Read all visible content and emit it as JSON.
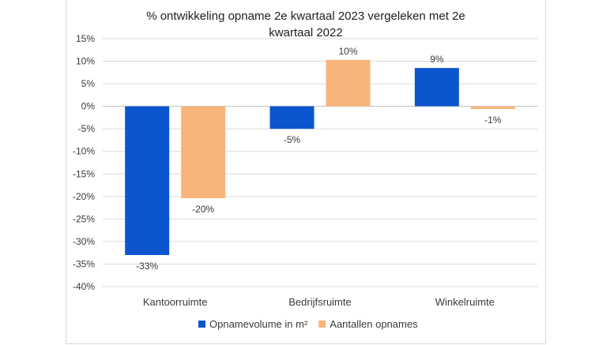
{
  "chart_data": {
    "type": "bar",
    "title_lines": [
      "% ontwikkeling opname 2e kwartaal 2023 vergeleken met 2e",
      "kwartaal 2022"
    ],
    "categories": [
      "Kantoorruimte",
      "Bedrijfsruimte",
      "Winkelruimte"
    ],
    "series": [
      {
        "name": "Opnamevolume in m²",
        "color": "#0b56cf",
        "values": [
          -33,
          -5,
          8.5
        ],
        "labels": [
          "-33%",
          "-5%",
          "9%"
        ]
      },
      {
        "name": "Aantallen opnames",
        "color": "#f8b47a",
        "values": [
          -20.4,
          10.3,
          -0.6
        ],
        "labels": [
          "-20%",
          "10%",
          "-1%"
        ]
      }
    ],
    "ylim": [
      -40,
      15
    ],
    "yticks": [
      15,
      10,
      5,
      0,
      -5,
      -10,
      -15,
      -20,
      -25,
      -30,
      -35,
      -40
    ],
    "ytick_labels": [
      "15%",
      "10%",
      "5%",
      "0%",
      "-5%",
      "-10%",
      "-15%",
      "-20%",
      "-25%",
      "-30%",
      "-35%",
      "-40%"
    ],
    "grid": true,
    "legend_position": "bottom"
  }
}
